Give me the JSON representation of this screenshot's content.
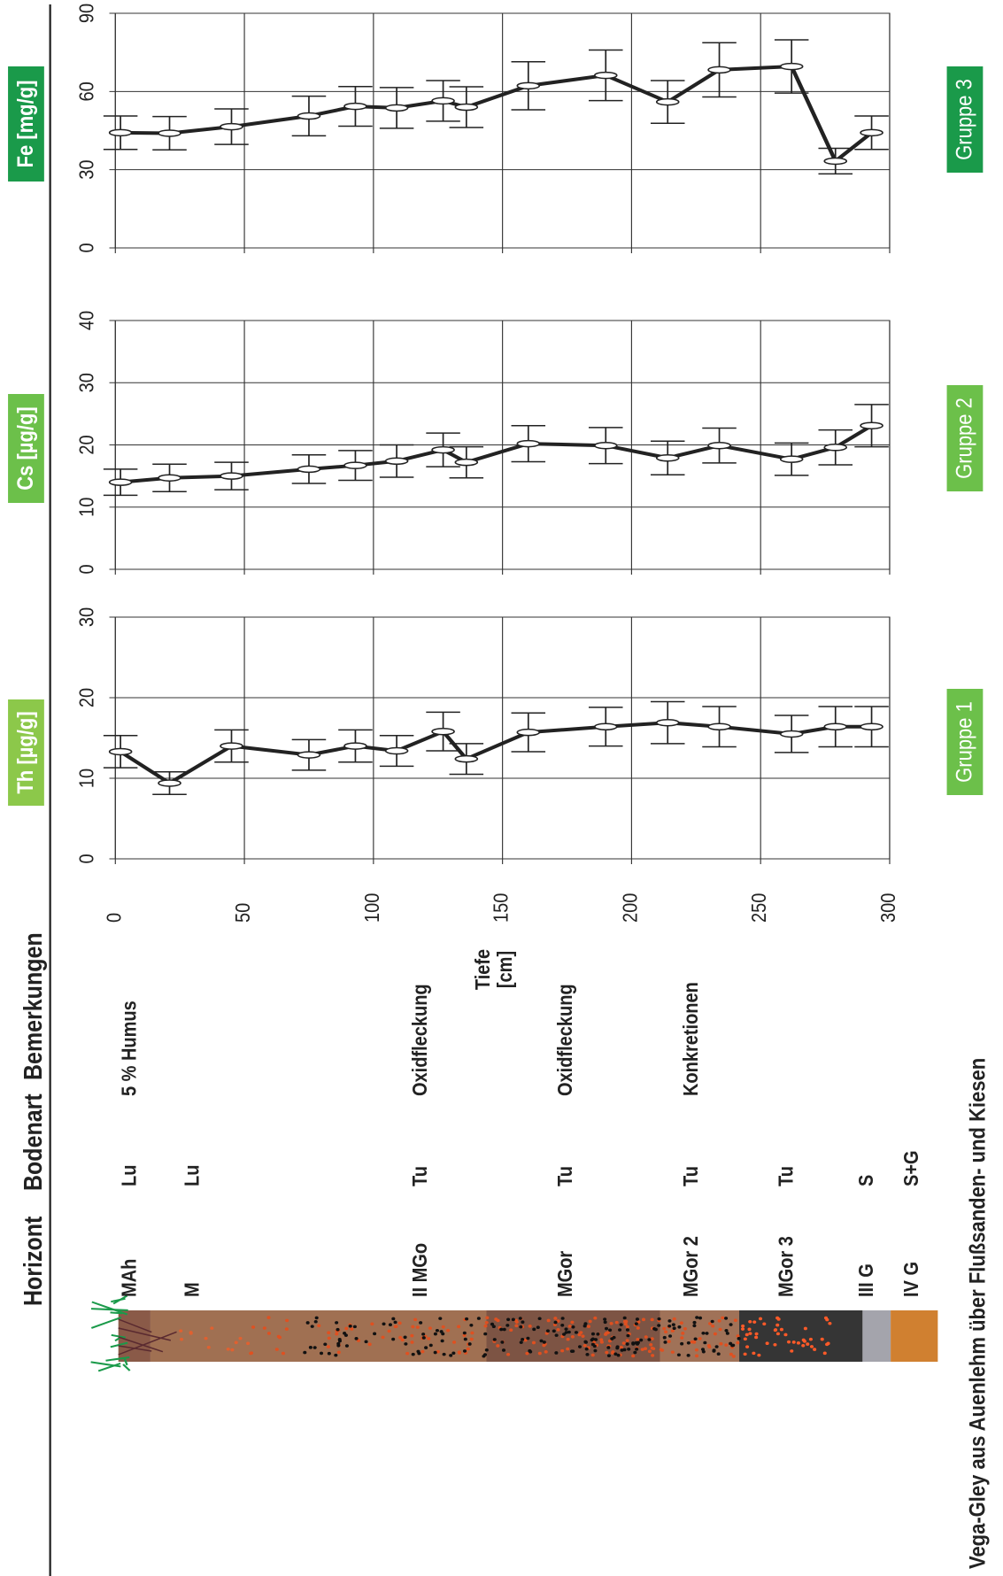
{
  "header": {
    "horizont": "Horizont",
    "bodenart": "Bodenart",
    "bemerkungen": "Bemerkungen"
  },
  "profile": [
    {
      "horizont": "MAh",
      "bodenart": "Lu",
      "bemerkung": "5 % Humus"
    },
    {
      "horizont": "M",
      "bodenart": "Lu"
    },
    {
      "horizont": "II MGo",
      "bodenart": "Tu",
      "bemerkung": "Oxidfleckung"
    },
    {
      "horizont": "MGor",
      "bodenart": "Tu",
      "bemerkung": "Oxidfleckung"
    },
    {
      "horizont": "MGor 2",
      "bodenart": "Tu",
      "bemerkung": "Konkretionen"
    },
    {
      "horizont": "MGor 3",
      "bodenart": "Tu"
    },
    {
      "horizont": "III G",
      "bodenart": "S"
    },
    {
      "horizont": "IV G",
      "bodenart": "S+G"
    }
  ],
  "caption": "Vega-Gley aus Auenlehm über Flußsanden- und Kiesen",
  "chart_data": [
    {
      "type": "line",
      "ylabel": "Th [µg/g]",
      "group": "Gruppe 1",
      "xlabel": [
        "Tiefe",
        "[cm]"
      ],
      "x": [
        2,
        21,
        45,
        75,
        93,
        109,
        127,
        136,
        160,
        190,
        214,
        234,
        262,
        279,
        293
      ],
      "xlim": [
        0,
        300
      ],
      "xticks": [
        0,
        50,
        100,
        150,
        200,
        250,
        300
      ],
      "ylim": [
        0,
        30
      ],
      "yticks": [
        0,
        10,
        20,
        30
      ],
      "grid": true,
      "series": [
        {
          "color": "#222222",
          "values": [
            13.3,
            9.4,
            14,
            12.9,
            14,
            13.4,
            15.8,
            12.4,
            15.7,
            16.4,
            16.9,
            16.4,
            15.5,
            16.4,
            16.4
          ],
          "errors": [
            2,
            1.4,
            2,
            1.9,
            2,
            1.9,
            2.4,
            1.9,
            2.4,
            2.4,
            2.6,
            2.5,
            2.3,
            2.5,
            2.5
          ]
        }
      ]
    },
    {
      "type": "line",
      "ylabel": "Cs [µg/g]",
      "group": "Gruppe 2",
      "x": [
        2,
        21,
        45,
        75,
        93,
        109,
        127,
        136,
        160,
        190,
        214,
        234,
        262,
        279,
        293
      ],
      "xlim": [
        0,
        300
      ],
      "xticks": [
        0,
        50,
        100,
        150,
        200,
        250,
        300
      ],
      "ylim": [
        0,
        40
      ],
      "yticks": [
        0,
        10,
        20,
        30,
        40
      ],
      "grid": true,
      "series": [
        {
          "color": "#222222",
          "values": [
            14,
            14.7,
            15,
            16.1,
            16.7,
            17.4,
            19.2,
            17.2,
            20.2,
            19.9,
            17.9,
            19.9,
            17.7,
            19.6,
            23.1
          ],
          "errors": [
            2.1,
            2.2,
            2.2,
            2.3,
            2.4,
            2.6,
            2.7,
            2.5,
            2.9,
            2.9,
            2.7,
            2.8,
            2.6,
            2.8,
            3.4
          ]
        }
      ]
    },
    {
      "type": "line",
      "ylabel": "Fe [mg/g]",
      "group": "Gruppe 3",
      "x": [
        2,
        21,
        45,
        75,
        93,
        109,
        127,
        136,
        160,
        190,
        214,
        234,
        262,
        279,
        293
      ],
      "xlim": [
        0,
        300
      ],
      "xticks": [
        0,
        50,
        100,
        150,
        200,
        250,
        300
      ],
      "ylim": [
        0,
        90
      ],
      "yticks": [
        0,
        30,
        60,
        90
      ],
      "grid": true,
      "series": [
        {
          "color": "#222222",
          "values": [
            44.2,
            44,
            46.5,
            50.6,
            54.3,
            53.7,
            56.4,
            54,
            62.2,
            66.2,
            56,
            68.3,
            69.6,
            33.3,
            44.2
          ],
          "errors": [
            6.4,
            6.4,
            6.8,
            7.6,
            7.6,
            7.8,
            7.8,
            7.8,
            9.2,
            9.7,
            8.2,
            10.4,
            10.2,
            4.9,
            6.4
          ]
        }
      ]
    }
  ]
}
